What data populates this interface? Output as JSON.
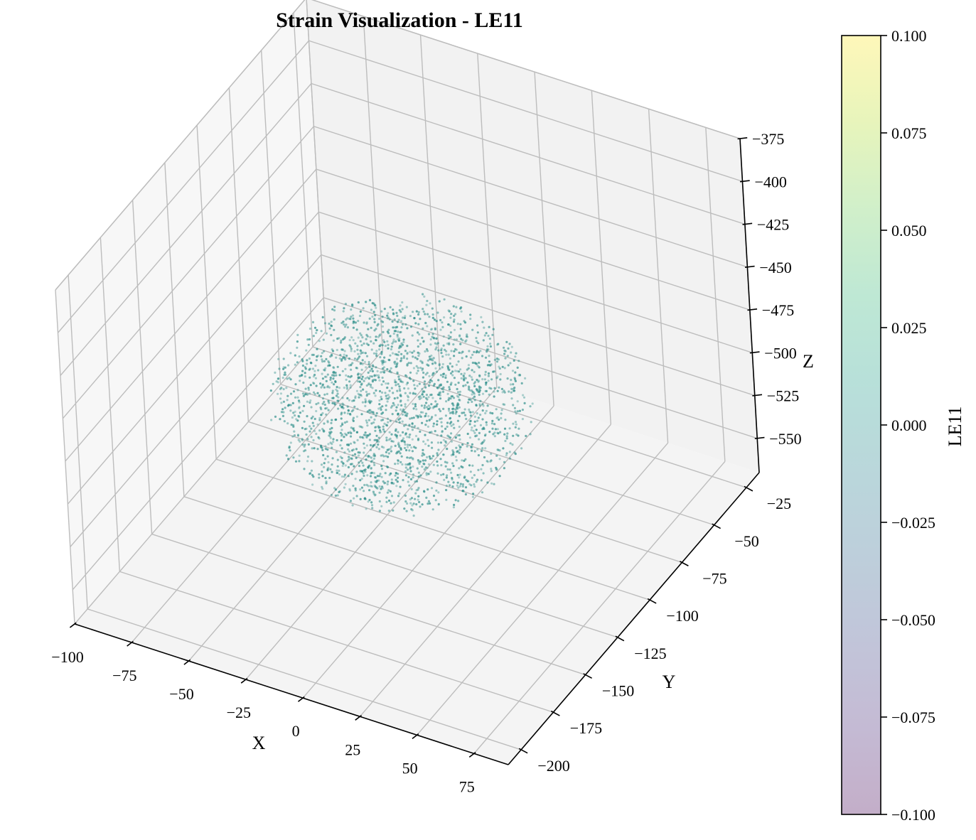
{
  "chart_data": {
    "type": "scatter",
    "projection": "3d",
    "title": "Strain Visualization - LE11",
    "xlabel": "X",
    "ylabel": "Y",
    "zlabel": "Z",
    "xlim": [
      -100,
      90
    ],
    "ylim": [
      -210,
      -15
    ],
    "zlim": [
      -570,
      -375
    ],
    "xticks": [
      -100,
      -75,
      -50,
      -25,
      0,
      25,
      50,
      75
    ],
    "xtick_labels": [
      "−100",
      "−75",
      "−50",
      "−25",
      "0",
      "25",
      "50",
      "75"
    ],
    "yticks": [
      -25,
      -50,
      -75,
      -100,
      -125,
      -150,
      -175,
      -200
    ],
    "ytick_labels": [
      "−25",
      "−50",
      "−75",
      "−100",
      "−125",
      "−150",
      "−175",
      "−200"
    ],
    "zticks": [
      -375,
      -400,
      -425,
      -450,
      -475,
      -500,
      -525,
      -550
    ],
    "ztick_labels": [
      "−375",
      "−400",
      "−425",
      "−450",
      "−475",
      "−500",
      "−525",
      "−550"
    ],
    "grid": true,
    "point_cloud": {
      "shape": "ellipsoid",
      "center": [
        -10,
        -110,
        -490
      ],
      "radii": [
        52,
        48,
        45
      ],
      "count": 2200,
      "color_value": 0.0,
      "alpha": 0.55
    },
    "colorbar": {
      "label": "LE11",
      "min": -0.1,
      "max": 0.1,
      "ticks": [
        0.1,
        0.075,
        0.05,
        0.025,
        0.0,
        -0.025,
        -0.05,
        -0.075,
        -0.1
      ],
      "tick_labels": [
        "0.100",
        "0.075",
        "0.050",
        "0.025",
        "0.000",
        "−0.025",
        "−0.050",
        "−0.075",
        "−0.100"
      ],
      "colors": [
        "#440154",
        "#482878",
        "#3e4989",
        "#31688e",
        "#26828e",
        "#1f9e89",
        "#35b779",
        "#6ece58",
        "#b5de2b",
        "#fde725"
      ],
      "alpha": 0.32
    },
    "colors": {
      "pane_back": "#f2f2f2",
      "pane_left": "#f7f7f7",
      "pane_floor": "#f4f4f4",
      "grid": "#bdbdbd",
      "point": "#2e8f8a"
    }
  }
}
